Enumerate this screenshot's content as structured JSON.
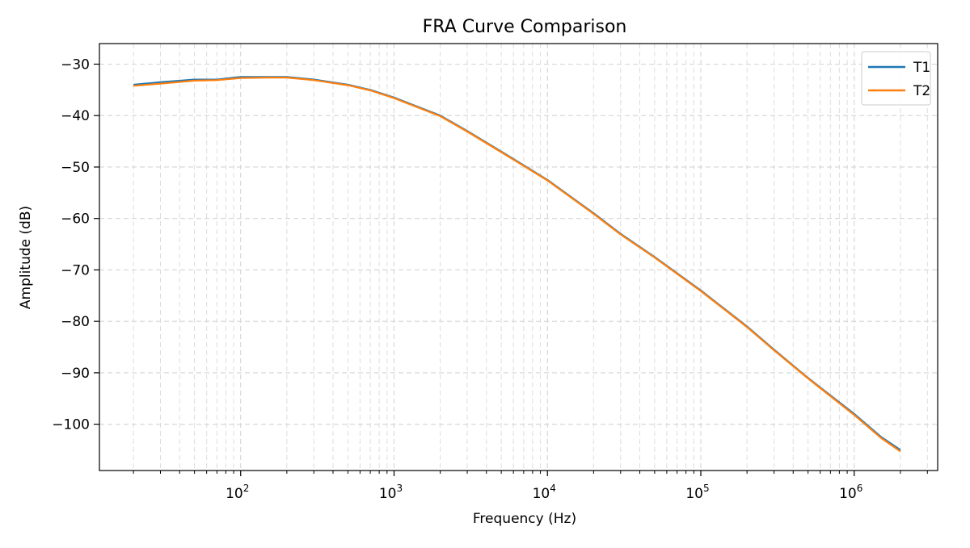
{
  "chart_data": {
    "type": "line",
    "title": "FRA Curve Comparison",
    "xlabel": "Frequency (Hz)",
    "ylabel": "Amplitude (dB)",
    "xscale": "log",
    "xlim": [
      12,
      3500000
    ],
    "ylim": [
      -109,
      -26
    ],
    "x_ticks": [
      100,
      1000,
      10000,
      100000,
      1000000
    ],
    "x_tick_labels": [
      {
        "base": "10",
        "exp": "2"
      },
      {
        "base": "10",
        "exp": "3"
      },
      {
        "base": "10",
        "exp": "4"
      },
      {
        "base": "10",
        "exp": "5"
      },
      {
        "base": "10",
        "exp": "6"
      }
    ],
    "y_ticks": [
      -30,
      -40,
      -50,
      -60,
      -70,
      -80,
      -90,
      -100
    ],
    "y_tick_labels": [
      "−30",
      "−40",
      "−50",
      "−60",
      "−70",
      "−80",
      "−90",
      "−100"
    ],
    "grid": true,
    "grid_minor": true,
    "legend": "top-right",
    "x": [
      20,
      30,
      50,
      70,
      100,
      150,
      200,
      300,
      500,
      700,
      1000,
      2000,
      3000,
      5000,
      10000,
      20000,
      30000,
      50000,
      100000,
      200000,
      300000,
      500000,
      1000000,
      1500000,
      2000000
    ],
    "series": [
      {
        "name": "T1",
        "color": "#1f77b4",
        "values": [
          -34,
          -33.5,
          -33,
          -33,
          -32.5,
          -32.5,
          -32.5,
          -33,
          -34,
          -35,
          -36.5,
          -40,
          -43,
          -47,
          -52.5,
          -59,
          -63,
          -67.5,
          -74,
          -81,
          -85.5,
          -91,
          -98,
          -102.5,
          -105
        ]
      },
      {
        "name": "T2",
        "color": "#ff7f0e",
        "values": [
          -34.2,
          -33.8,
          -33.2,
          -33.1,
          -32.7,
          -32.6,
          -32.6,
          -33.1,
          -34.1,
          -35.1,
          -36.6,
          -40.1,
          -43.1,
          -47.1,
          -52.6,
          -59.1,
          -63.1,
          -67.6,
          -74.1,
          -81.1,
          -85.6,
          -91.1,
          -98.2,
          -102.7,
          -105.3
        ]
      }
    ]
  }
}
